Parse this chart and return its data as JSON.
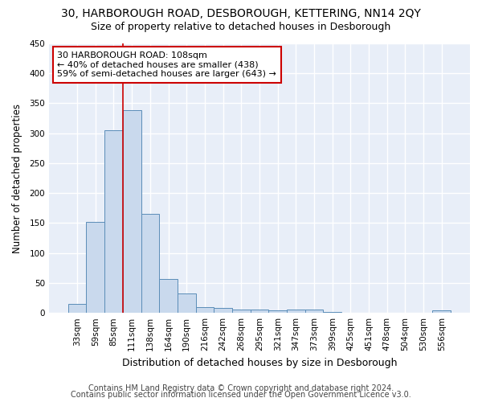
{
  "title": "30, HARBOROUGH ROAD, DESBOROUGH, KETTERING, NN14 2QY",
  "subtitle": "Size of property relative to detached houses in Desborough",
  "xlabel": "Distribution of detached houses by size in Desborough",
  "ylabel": "Number of detached properties",
  "categories": [
    "33sqm",
    "59sqm",
    "85sqm",
    "111sqm",
    "138sqm",
    "164sqm",
    "190sqm",
    "216sqm",
    "242sqm",
    "268sqm",
    "295sqm",
    "321sqm",
    "347sqm",
    "373sqm",
    "399sqm",
    "425sqm",
    "451sqm",
    "478sqm",
    "504sqm",
    "530sqm",
    "556sqm"
  ],
  "values": [
    15,
    152,
    305,
    338,
    165,
    57,
    33,
    9,
    8,
    5,
    5,
    4,
    5,
    5,
    2,
    0,
    0,
    0,
    0,
    0,
    4
  ],
  "bar_color": "#c9d9ed",
  "bar_edge_color": "#5b8db8",
  "red_line_x": 3.0,
  "annotation_text": "30 HARBOROUGH ROAD: 108sqm\n← 40% of detached houses are smaller (438)\n59% of semi-detached houses are larger (643) →",
  "annotation_box_color": "#ffffff",
  "annotation_box_edge": "#cc0000",
  "ylim": [
    0,
    450
  ],
  "yticks": [
    0,
    50,
    100,
    150,
    200,
    250,
    300,
    350,
    400,
    450
  ],
  "footer1": "Contains HM Land Registry data © Crown copyright and database right 2024.",
  "footer2": "Contains public sector information licensed under the Open Government Licence v3.0.",
  "background_color": "#e8eef8",
  "fig_background_color": "#ffffff",
  "grid_color": "#ffffff",
  "title_fontsize": 10,
  "subtitle_fontsize": 9,
  "xlabel_fontsize": 9,
  "ylabel_fontsize": 8.5,
  "tick_fontsize": 7.5,
  "footer_fontsize": 7,
  "annot_fontsize": 8
}
